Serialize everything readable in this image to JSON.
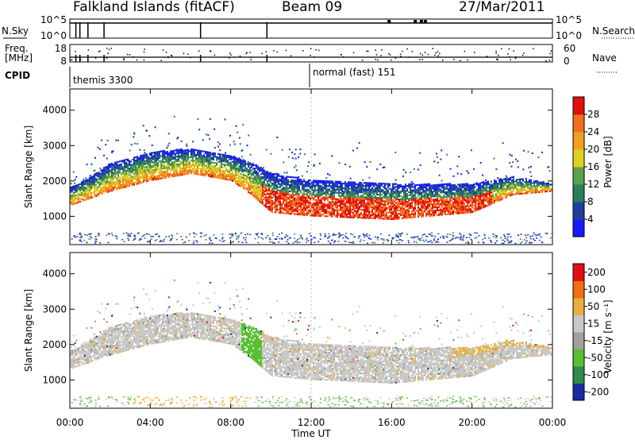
{
  "header": {
    "station": "Falkland Islands (fitACF)",
    "beam": "Beam 09",
    "date": "27/Mar/2011"
  },
  "status_panels": {
    "nsky_label": "N.Sky",
    "nsearch_label": "N.Search",
    "freq_label_1": "Freq.",
    "freq_label_2": "[MHz]",
    "nave_label": "Nave",
    "cpid_label": "CPID",
    "noise_ticks_left": [
      "10^5",
      "10^0"
    ],
    "noise_ticks_right": [
      "10^5",
      "10^0"
    ],
    "freq_ticks_left": [
      "18",
      "8"
    ],
    "nave_ticks_right": [
      "60",
      "0"
    ],
    "cpid_segments": [
      {
        "label": "themis 3300",
        "start_hour": 0.0
      },
      {
        "label": "normal (fast) 151",
        "start_hour": 12.0
      }
    ]
  },
  "time_axis": {
    "xlabel": "Time UT",
    "tick_labels": [
      "00:00",
      "04:00",
      "08:00",
      "12:00",
      "16:00",
      "20:00",
      "00:00"
    ],
    "tick_hours": [
      0,
      4,
      8,
      12,
      16,
      20,
      24
    ]
  },
  "range_axis": {
    "ylabel": "Slant Range [km]",
    "tick_labels": [
      "1000",
      "2000",
      "3000",
      "4000"
    ],
    "tick_values": [
      1000,
      2000,
      3000,
      4000
    ],
    "ylim": [
      200,
      4600
    ]
  },
  "power_scale": {
    "label": "Power [dB]",
    "tick_labels": [
      "4",
      "8",
      "12",
      "16",
      "20",
      "24",
      "28"
    ],
    "colors": [
      "#1a1aff",
      "#1f3f9f",
      "#2e7d5a",
      "#5aa050",
      "#e0d020",
      "#f0a020",
      "#f07020",
      "#e01010"
    ]
  },
  "velocity_scale": {
    "label": "Velocity [m s⁻¹]",
    "tick_labels": [
      "200",
      "100",
      "50",
      "15",
      "-15",
      "-50",
      "-100",
      "-200"
    ],
    "colors": [
      "#1a2aa0",
      "#2d8c4a",
      "#55c030",
      "#a0a0a0",
      "#c8c8c8",
      "#e8b040",
      "#f07010",
      "#e01010"
    ]
  },
  "chart_data": [
    {
      "type": "heatmap",
      "title": "Power",
      "xlabel": "Time UT",
      "ylabel": "Slant Range [km]",
      "xlim_hours": [
        0,
        24
      ],
      "ylim": [
        200,
        4600
      ],
      "colorbar_label": "Power [dB]",
      "colorbar_range": [
        0,
        32
      ],
      "echo_band_upper_km": [
        [
          0,
          1800
        ],
        [
          1,
          2100
        ],
        [
          2,
          2500
        ],
        [
          4,
          2800
        ],
        [
          6,
          2900
        ],
        [
          8,
          2700
        ],
        [
          9,
          2500
        ],
        [
          10,
          2200
        ],
        [
          12,
          2000
        ],
        [
          16,
          1900
        ],
        [
          20,
          1900
        ],
        [
          22,
          2100
        ],
        [
          24,
          1900
        ]
      ],
      "echo_band_lower_km": [
        [
          0,
          1300
        ],
        [
          2,
          1700
        ],
        [
          4,
          2000
        ],
        [
          6,
          2200
        ],
        [
          8,
          2000
        ],
        [
          9,
          1600
        ],
        [
          10,
          1100
        ],
        [
          12,
          1000
        ],
        [
          16,
          900
        ],
        [
          20,
          1100
        ],
        [
          22,
          1600
        ],
        [
          24,
          1700
        ]
      ]
    },
    {
      "type": "heatmap",
      "title": "Velocity",
      "xlabel": "Time UT",
      "ylabel": "Slant Range [km]",
      "xlim_hours": [
        0,
        24
      ],
      "ylim": [
        200,
        4600
      ],
      "colorbar_label": "Velocity [m s⁻¹]",
      "colorbar_range": [
        -250,
        250
      ]
    }
  ]
}
